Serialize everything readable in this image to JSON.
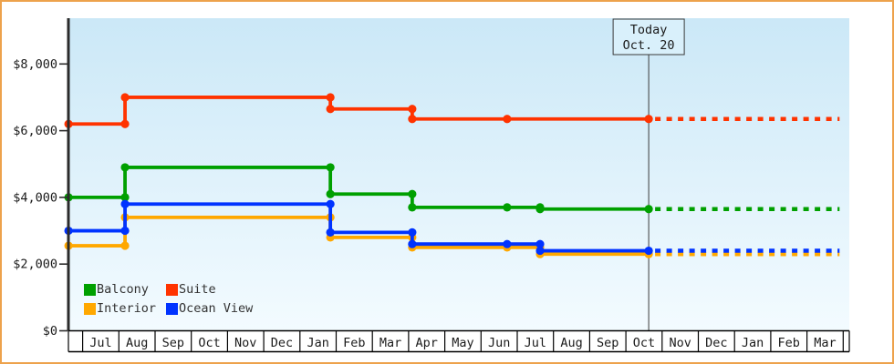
{
  "page": {
    "colors": {
      "frame_border": "#EDA24C",
      "page_bg": "#FFFFFF",
      "plot_bg_top": "#CBE8F7",
      "plot_bg_bottom": "#F3FBFF",
      "axis": "#2B2B2B",
      "month_strip_bg": "#FFFFFF",
      "today_line": "#3A3A3A",
      "today_box_fill": "#D9F0FB",
      "text": "#1A1A1A"
    }
  },
  "chart_data": {
    "type": "line",
    "step_mode": "step-after",
    "title": "",
    "x_axis": {
      "unit": "month",
      "labels": [
        "Jul",
        "Aug",
        "Sep",
        "Oct",
        "Nov",
        "Dec",
        "Jan",
        "Feb",
        "Mar",
        "Apr",
        "May",
        "Jun",
        "Jul",
        "Aug",
        "Sep",
        "Oct",
        "Nov",
        "Dec",
        "Jan",
        "Feb",
        "Mar"
      ]
    },
    "y_axis": {
      "min": 0,
      "max": 9400,
      "currency": "USD",
      "ticks": [
        {
          "value": 0,
          "label": "$0"
        },
        {
          "value": 2000,
          "label": "$2,000"
        },
        {
          "value": 4000,
          "label": "$4,000"
        },
        {
          "value": 6000,
          "label": "$6,000"
        },
        {
          "value": 8000,
          "label": "$8,000"
        }
      ]
    },
    "today": {
      "title": "Today",
      "date": "Oct. 20",
      "month_position": 15.63
    },
    "projection_end_month": 21.0,
    "series": [
      {
        "name": "Balcony",
        "color": "#00A000",
        "points": [
          {
            "m": -0.39,
            "price": 4000
          },
          {
            "m": 1.17,
            "price": 4900
          },
          {
            "m": 6.84,
            "price": 4100
          },
          {
            "m": 9.1,
            "price": 3700
          },
          {
            "m": 11.72,
            "price": 3700
          },
          {
            "m": 12.63,
            "price": 3650
          },
          {
            "m": 15.63,
            "price": 3650
          }
        ]
      },
      {
        "name": "Suite",
        "color": "#FF3300",
        "points": [
          {
            "m": -0.39,
            "price": 6200
          },
          {
            "m": 1.17,
            "price": 7000
          },
          {
            "m": 6.84,
            "price": 6650
          },
          {
            "m": 9.1,
            "price": 6350
          },
          {
            "m": 11.72,
            "price": 6350
          },
          {
            "m": 15.63,
            "price": 6350
          }
        ]
      },
      {
        "name": "Interior",
        "color": "#FFA800",
        "points": [
          {
            "m": -0.39,
            "price": 2550
          },
          {
            "m": 1.17,
            "price": 3400
          },
          {
            "m": 6.84,
            "price": 2800
          },
          {
            "m": 9.1,
            "price": 2500
          },
          {
            "m": 11.72,
            "price": 2500
          },
          {
            "m": 12.63,
            "price": 2300
          },
          {
            "m": 15.63,
            "price": 2300
          }
        ]
      },
      {
        "name": "Ocean View",
        "color": "#0033FF",
        "points": [
          {
            "m": -0.39,
            "price": 3000
          },
          {
            "m": 1.17,
            "price": 3800
          },
          {
            "m": 6.84,
            "price": 2950
          },
          {
            "m": 9.1,
            "price": 2600
          },
          {
            "m": 11.72,
            "price": 2600
          },
          {
            "m": 12.63,
            "price": 2400
          },
          {
            "m": 15.63,
            "price": 2400
          }
        ]
      }
    ],
    "legend_position": "inside-bottom-left",
    "grid": false
  },
  "legend": {
    "items": [
      {
        "label": "Balcony",
        "color": "#00A000"
      },
      {
        "label": "Suite",
        "color": "#FF3300"
      },
      {
        "label": "Interior",
        "color": "#FFA800"
      },
      {
        "label": "Ocean View",
        "color": "#0033FF"
      }
    ]
  }
}
